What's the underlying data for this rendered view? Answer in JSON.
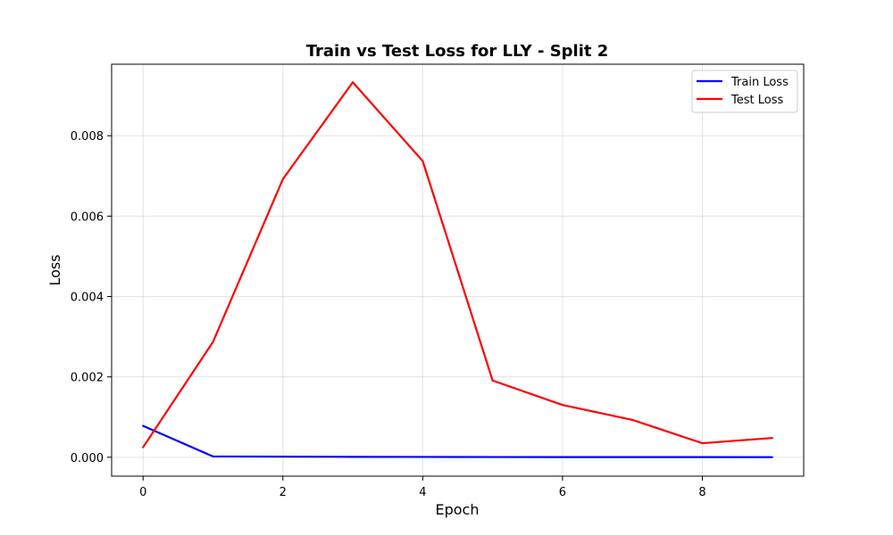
{
  "chart_data": {
    "type": "line",
    "title": "Train vs Test Loss for LLY - Split 2",
    "xlabel": "Epoch",
    "ylabel": "Loss",
    "xlim": [
      -0.45,
      9.45
    ],
    "ylim": [
      -0.00047,
      0.00978
    ],
    "xticks": [
      0,
      2,
      4,
      6,
      8
    ],
    "xtick_labels": [
      "0",
      "2",
      "4",
      "6",
      "8"
    ],
    "yticks": [
      0,
      0.002,
      0.004,
      0.006,
      0.008
    ],
    "ytick_labels": [
      "0.000",
      "0.002",
      "0.004",
      "0.006",
      "0.008"
    ],
    "grid": true,
    "legend_position": "top-right",
    "x": [
      0,
      1,
      2,
      3,
      4,
      5,
      6,
      7,
      8,
      9
    ],
    "series": [
      {
        "name": "Train Loss",
        "color": "#0000ff",
        "values": [
          0.00078,
          2e-05,
          1.5e-05,
          1e-05,
          8e-06,
          6e-06,
          5e-06,
          4e-06,
          4e-06,
          3e-06
        ]
      },
      {
        "name": "Test Loss",
        "color": "#ff0000",
        "values": [
          0.00025,
          0.00287,
          0.00692,
          0.00933,
          0.00737,
          0.00191,
          0.0013,
          0.00093,
          0.00035,
          0.00048
        ]
      }
    ]
  }
}
